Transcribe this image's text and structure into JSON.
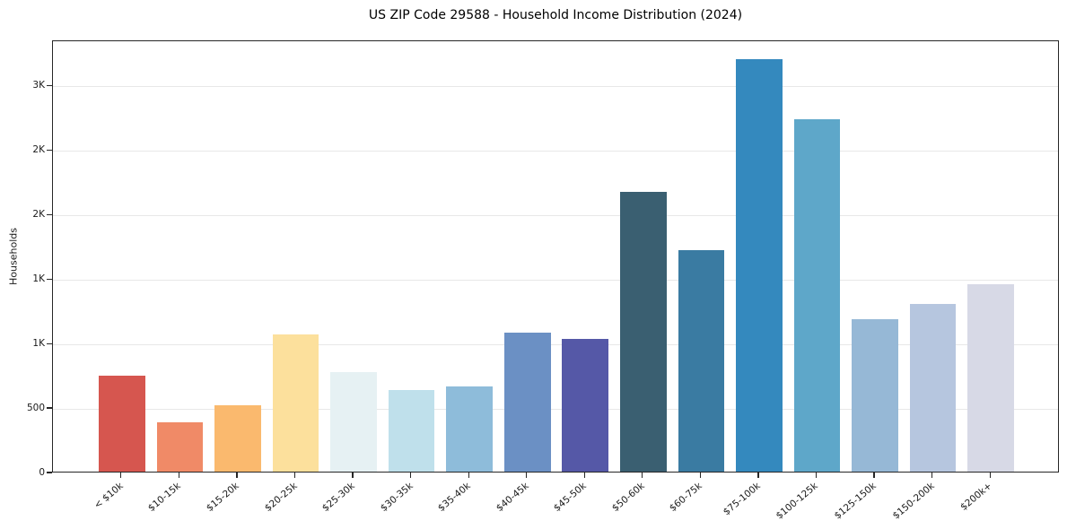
{
  "chart_data": {
    "type": "bar",
    "title": "US ZIP Code 29588 - Household Income Distribution (2024)",
    "xlabel": "",
    "ylabel": "Households",
    "categories": [
      "< $10k",
      "$10-15k",
      "$15-20k",
      "$20-25k",
      "$25-30k",
      "$30-35k",
      "$35-40k",
      "$40-45k",
      "$45-50k",
      "$50-60k",
      "$60-75k",
      "$75-100k",
      "$100-125k",
      "$125-150k",
      "$150-200k",
      "$200k+"
    ],
    "values": [
      745,
      385,
      515,
      1065,
      770,
      630,
      660,
      1080,
      1030,
      2170,
      1720,
      3195,
      2730,
      1180,
      1300,
      1455
    ],
    "bar_colors": [
      "#d6564f",
      "#f08a67",
      "#fab96e",
      "#fce09c",
      "#e6f1f3",
      "#bfe0eb",
      "#8ebcda",
      "#6b90c4",
      "#5558a7",
      "#3a5f71",
      "#3a7ba2",
      "#3489be",
      "#5ea7c9",
      "#96b8d6",
      "#b6c6df",
      "#d7d9e6"
    ],
    "ylim": [
      0,
      3350
    ],
    "yticks": [
      {
        "value": 0,
        "label": "0"
      },
      {
        "value": 500,
        "label": "500"
      },
      {
        "value": 1000,
        "label": "1K"
      },
      {
        "value": 1500,
        "label": "1K"
      },
      {
        "value": 2000,
        "label": "2K"
      },
      {
        "value": 2500,
        "label": "2K"
      },
      {
        "value": 3000,
        "label": "3K"
      }
    ],
    "grid": "horizontal",
    "legend": "none"
  },
  "colors": {
    "grid": "#e8e8e8",
    "spine": "#262626",
    "tick_text": "#1a1a1a",
    "title_text": "#000000",
    "background": "#ffffff"
  }
}
